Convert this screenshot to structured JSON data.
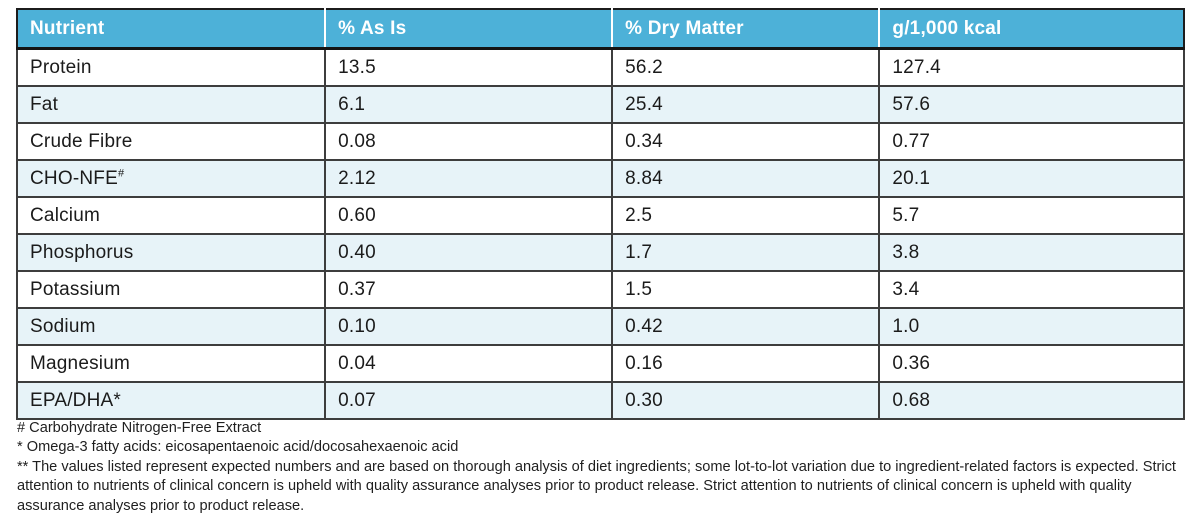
{
  "table": {
    "columns": [
      "Nutrient",
      "% As Is",
      "% Dry Matter",
      "g/1,000 kcal"
    ],
    "rows": [
      {
        "name": "Protein",
        "sup": "",
        "values": [
          "13.5",
          "56.2",
          "127.4"
        ]
      },
      {
        "name": "Fat",
        "sup": "",
        "values": [
          "6.1",
          "25.4",
          "57.6"
        ]
      },
      {
        "name": "Crude Fibre",
        "sup": "",
        "values": [
          "0.08",
          "0.34",
          "0.77"
        ]
      },
      {
        "name": "CHO-NFE",
        "sup": "#",
        "values": [
          "2.12",
          "8.84",
          "20.1"
        ]
      },
      {
        "name": "Calcium",
        "sup": "",
        "values": [
          "0.60",
          "2.5",
          "5.7"
        ]
      },
      {
        "name": "Phosphorus",
        "sup": "",
        "values": [
          "0.40",
          "1.7",
          "3.8"
        ]
      },
      {
        "name": "Potassium",
        "sup": "",
        "values": [
          "0.37",
          "1.5",
          "3.4"
        ]
      },
      {
        "name": "Sodium",
        "sup": "",
        "values": [
          "0.10",
          "0.42",
          "1.0"
        ]
      },
      {
        "name": "Magnesium",
        "sup": "",
        "values": [
          "0.04",
          "0.16",
          "0.36"
        ]
      },
      {
        "name": "EPA/DHA*",
        "sup": "",
        "values": [
          "0.07",
          "0.30",
          "0.68"
        ]
      }
    ]
  },
  "footnotes": [
    "# Carbohydrate Nitrogen-Free Extract",
    "* Omega-3 fatty acids: eicosapentaenoic acid/docosahexaenoic acid",
    "** The values listed represent expected numbers and are based on thorough analysis of diet ingredients; some lot-to-lot variation due to ingredient-related factors is expected. Strict attention to nutrients of clinical concern is upheld with quality assurance analyses prior to product release. Strict attention to nutrients of clinical concern is upheld with quality assurance analyses prior to product release."
  ],
  "colors": {
    "header_bg": "#4db1d8",
    "row_alt_bg": "#e7f3f8",
    "border_dark": "#3d3d3d",
    "outer_border": "#1c1c1c"
  }
}
